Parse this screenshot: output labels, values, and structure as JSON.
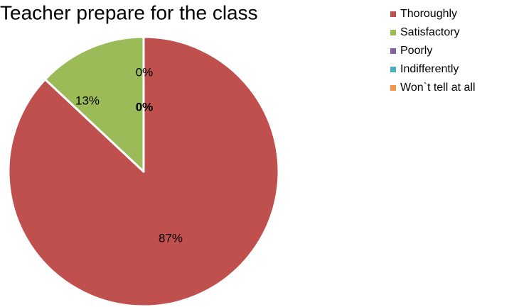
{
  "chart_data": {
    "type": "pie",
    "title": "Teacher prepare for the class",
    "categories": [
      "Thoroughly",
      "Satisfactory",
      "Poorly",
      "Indifferently",
      "Won`t tell at all"
    ],
    "values": [
      87,
      13,
      0,
      0,
      0
    ],
    "value_labels": [
      "87%",
      "13%",
      "0%",
      "0%",
      null
    ],
    "colors": [
      "#c0504d",
      "#9bbb59",
      "#8064a2",
      "#4bacc6",
      "#f79646"
    ],
    "legend": "right"
  }
}
